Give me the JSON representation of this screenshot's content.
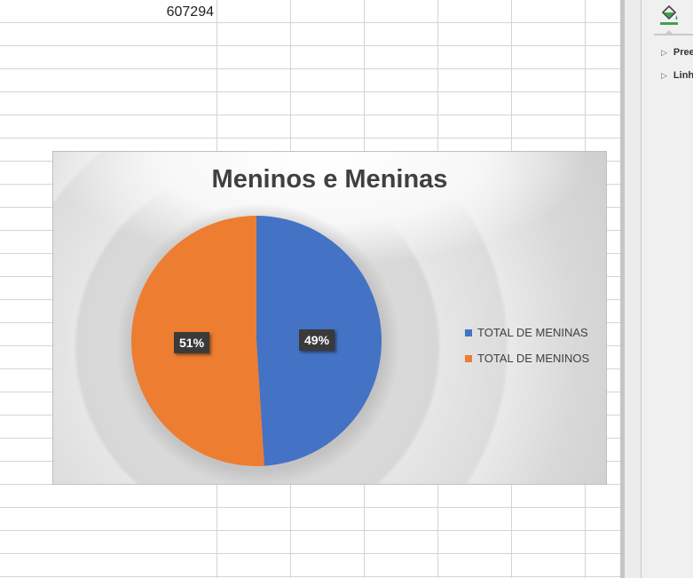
{
  "sheet": {
    "cell_value": "607294"
  },
  "chart": {
    "title": "Meninos e Meninas",
    "labels": {
      "meninas": "49%",
      "meninos": "51%"
    },
    "legend": [
      {
        "label": "TOTAL DE MENINAS",
        "color": "#4472c4"
      },
      {
        "label": "TOTAL DE MENINOS",
        "color": "#ed7d31"
      }
    ]
  },
  "chart_data": {
    "type": "pie",
    "title": "Meninos e Meninas",
    "categories": [
      "TOTAL DE MENINAS",
      "TOTAL DE MENINOS"
    ],
    "values": [
      49,
      51
    ],
    "colors": [
      "#4472c4",
      "#ed7d31"
    ],
    "legend_position": "right"
  },
  "pane": {
    "tab_icon": "paint-bucket-icon",
    "sections": [
      "Preen",
      "Linh"
    ]
  }
}
